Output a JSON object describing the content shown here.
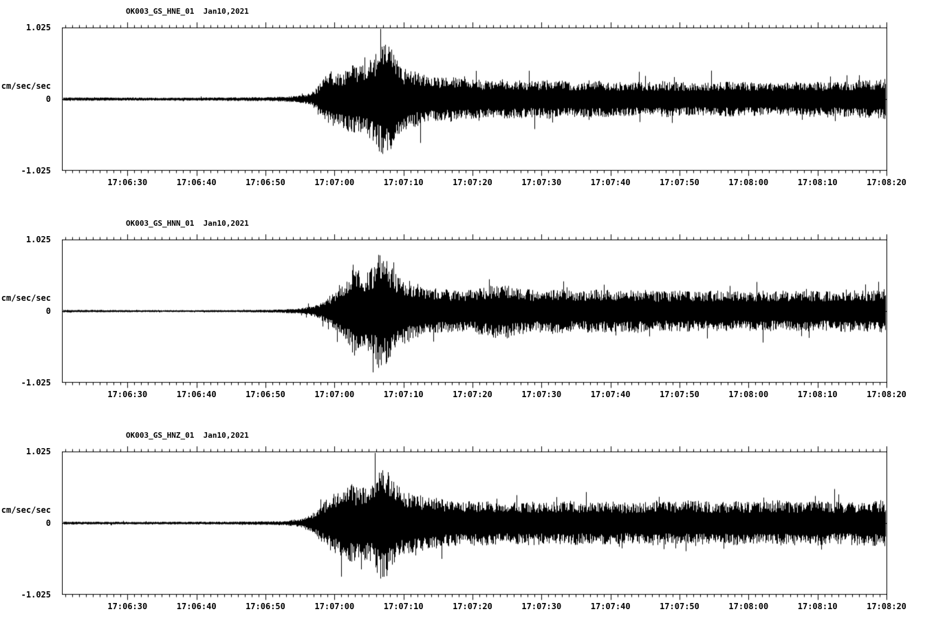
{
  "page": {
    "background": "#ffffff",
    "trace_color": "#000000",
    "text_color": "#000000"
  },
  "chart_data": [
    {
      "type": "line",
      "kind": "seismogram",
      "title": "OK003_GS_HNE_01  Jan10,2021",
      "station_channel": "OK003_GS_HNE_01",
      "date": "Jan10,2021",
      "ylabel": "cm/sec/sec",
      "ytick_labels": [
        "1.025",
        "0",
        "-1.025"
      ],
      "ylim": [
        -1.025,
        1.025
      ],
      "grid": false,
      "legend": false,
      "x_domain_s": [
        20.5,
        140
      ],
      "xticks": [
        {
          "s": 30,
          "label": "17:06:30"
        },
        {
          "s": 40,
          "label": "17:06:40"
        },
        {
          "s": 50,
          "label": "17:06:50"
        },
        {
          "s": 60,
          "label": "17:07:00"
        },
        {
          "s": 70,
          "label": "17:07:10"
        },
        {
          "s": 80,
          "label": "17:07:20"
        },
        {
          "s": 90,
          "label": "17:07:30"
        },
        {
          "s": 100,
          "label": "17:07:40"
        },
        {
          "s": 110,
          "label": "17:07:50"
        },
        {
          "s": 120,
          "label": "17:08:00"
        },
        {
          "s": 130,
          "label": "17:08:10"
        },
        {
          "s": 140,
          "label": "17:08:20"
        }
      ],
      "envelope": [
        [
          20.5,
          0.025
        ],
        [
          36,
          0.022
        ],
        [
          44,
          0.026
        ],
        [
          50,
          0.03
        ],
        [
          53,
          0.04
        ],
        [
          55,
          0.055
        ],
        [
          56.5,
          0.09
        ],
        [
          57.5,
          0.18
        ],
        [
          58.5,
          0.32
        ],
        [
          59.5,
          0.42
        ],
        [
          60.5,
          0.38
        ],
        [
          61.5,
          0.45
        ],
        [
          62.5,
          0.52
        ],
        [
          63.5,
          0.48
        ],
        [
          64.5,
          0.55
        ],
        [
          65.5,
          0.62
        ],
        [
          66.5,
          0.78
        ],
        [
          67.3,
          0.95
        ],
        [
          68,
          0.8
        ],
        [
          69,
          0.58
        ],
        [
          70,
          0.46
        ],
        [
          71.5,
          0.42
        ],
        [
          73,
          0.36
        ],
        [
          75,
          0.32
        ],
        [
          77,
          0.34
        ],
        [
          79,
          0.3
        ],
        [
          82,
          0.28
        ],
        [
          85,
          0.3
        ],
        [
          88,
          0.27
        ],
        [
          91,
          0.29
        ],
        [
          94,
          0.26
        ],
        [
          97,
          0.28
        ],
        [
          100,
          0.26
        ],
        [
          104,
          0.25
        ],
        [
          108,
          0.27
        ],
        [
          112,
          0.24
        ],
        [
          116,
          0.26
        ],
        [
          120,
          0.25
        ],
        [
          124,
          0.24
        ],
        [
          128,
          0.27
        ],
        [
          132,
          0.25
        ],
        [
          136,
          0.28
        ],
        [
          140,
          0.3
        ]
      ]
    },
    {
      "type": "line",
      "kind": "seismogram",
      "title": "OK003_GS_HNN_01  Jan10,2021",
      "station_channel": "OK003_GS_HNN_01",
      "date": "Jan10,2021",
      "ylabel": "cm/sec/sec",
      "ytick_labels": [
        "1.025",
        "0",
        "-1.025"
      ],
      "ylim": [
        -1.025,
        1.025
      ],
      "grid": false,
      "legend": false,
      "x_domain_s": [
        20.5,
        140
      ],
      "xticks": [
        {
          "s": 30,
          "label": "17:06:30"
        },
        {
          "s": 40,
          "label": "17:06:40"
        },
        {
          "s": 50,
          "label": "17:06:50"
        },
        {
          "s": 60,
          "label": "17:07:00"
        },
        {
          "s": 70,
          "label": "17:07:10"
        },
        {
          "s": 80,
          "label": "17:07:20"
        },
        {
          "s": 90,
          "label": "17:07:30"
        },
        {
          "s": 100,
          "label": "17:07:40"
        },
        {
          "s": 110,
          "label": "17:07:50"
        },
        {
          "s": 120,
          "label": "17:08:00"
        },
        {
          "s": 130,
          "label": "17:08:10"
        },
        {
          "s": 140,
          "label": "17:08:20"
        }
      ],
      "envelope": [
        [
          20.5,
          0.02
        ],
        [
          30,
          0.016
        ],
        [
          40,
          0.015
        ],
        [
          48,
          0.018
        ],
        [
          52,
          0.025
        ],
        [
          55,
          0.04
        ],
        [
          57,
          0.08
        ],
        [
          58.5,
          0.16
        ],
        [
          60,
          0.28
        ],
        [
          61,
          0.38
        ],
        [
          62,
          0.52
        ],
        [
          62.8,
          0.72
        ],
        [
          63.5,
          0.6
        ],
        [
          64.5,
          0.55
        ],
        [
          65.5,
          0.65
        ],
        [
          66.5,
          0.88
        ],
        [
          67.5,
          0.78
        ],
        [
          68.5,
          0.62
        ],
        [
          69.5,
          0.52
        ],
        [
          70.5,
          0.46
        ],
        [
          72,
          0.4
        ],
        [
          74,
          0.36
        ],
        [
          76,
          0.32
        ],
        [
          78,
          0.3
        ],
        [
          80,
          0.32
        ],
        [
          82.5,
          0.38
        ],
        [
          84.5,
          0.42
        ],
        [
          86.5,
          0.35
        ],
        [
          89,
          0.31
        ],
        [
          92,
          0.34
        ],
        [
          95,
          0.3
        ],
        [
          98,
          0.33
        ],
        [
          101,
          0.3
        ],
        [
          104,
          0.32
        ],
        [
          107,
          0.29
        ],
        [
          110,
          0.31
        ],
        [
          113,
          0.29
        ],
        [
          116,
          0.31
        ],
        [
          119,
          0.29
        ],
        [
          122,
          0.3
        ],
        [
          125,
          0.29
        ],
        [
          128,
          0.31
        ],
        [
          131,
          0.29
        ],
        [
          134,
          0.31
        ],
        [
          137,
          0.3
        ],
        [
          140,
          0.33
        ]
      ]
    },
    {
      "type": "line",
      "kind": "seismogram",
      "title": "OK003_GS_HNZ_01  Jan10,2021",
      "station_channel": "OK003_GS_HNZ_01",
      "date": "Jan10,2021",
      "ylabel": "cm/sec/sec",
      "ytick_labels": [
        "1.025",
        "0",
        "-1.025"
      ],
      "ylim": [
        -1.025,
        1.025
      ],
      "grid": false,
      "legend": false,
      "x_domain_s": [
        20.5,
        140
      ],
      "xticks": [
        {
          "s": 30,
          "label": "17:06:30"
        },
        {
          "s": 40,
          "label": "17:06:40"
        },
        {
          "s": 50,
          "label": "17:06:50"
        },
        {
          "s": 60,
          "label": "17:07:00"
        },
        {
          "s": 70,
          "label": "17:07:10"
        },
        {
          "s": 80,
          "label": "17:07:20"
        },
        {
          "s": 90,
          "label": "17:07:30"
        },
        {
          "s": 100,
          "label": "17:07:40"
        },
        {
          "s": 110,
          "label": "17:07:50"
        },
        {
          "s": 120,
          "label": "17:08:00"
        },
        {
          "s": 130,
          "label": "17:08:10"
        },
        {
          "s": 140,
          "label": "17:08:20"
        }
      ],
      "envelope": [
        [
          20.5,
          0.022
        ],
        [
          32,
          0.019
        ],
        [
          42,
          0.021
        ],
        [
          50,
          0.026
        ],
        [
          53,
          0.035
        ],
        [
          55,
          0.06
        ],
        [
          56.5,
          0.12
        ],
        [
          57.5,
          0.22
        ],
        [
          58.5,
          0.32
        ],
        [
          59.5,
          0.42
        ],
        [
          60.5,
          0.48
        ],
        [
          61.5,
          0.52
        ],
        [
          62.5,
          0.58
        ],
        [
          63.5,
          0.52
        ],
        [
          64.5,
          0.58
        ],
        [
          65.5,
          0.62
        ],
        [
          66.8,
          0.88
        ],
        [
          67.6,
          0.8
        ],
        [
          68.5,
          0.62
        ],
        [
          69.5,
          0.52
        ],
        [
          71,
          0.45
        ],
        [
          73,
          0.4
        ],
        [
          75,
          0.37
        ],
        [
          77,
          0.34
        ],
        [
          79,
          0.32
        ],
        [
          82,
          0.33
        ],
        [
          85,
          0.3
        ],
        [
          88,
          0.33
        ],
        [
          91,
          0.31
        ],
        [
          94,
          0.33
        ],
        [
          97,
          0.3
        ],
        [
          100,
          0.32
        ],
        [
          103,
          0.3
        ],
        [
          106,
          0.33
        ],
        [
          109,
          0.31
        ],
        [
          112,
          0.34
        ],
        [
          115,
          0.31
        ],
        [
          118,
          0.33
        ],
        [
          121,
          0.31
        ],
        [
          124,
          0.34
        ],
        [
          127,
          0.31
        ],
        [
          130,
          0.33
        ],
        [
          133,
          0.31
        ],
        [
          136,
          0.33
        ],
        [
          140,
          0.34
        ]
      ]
    }
  ]
}
